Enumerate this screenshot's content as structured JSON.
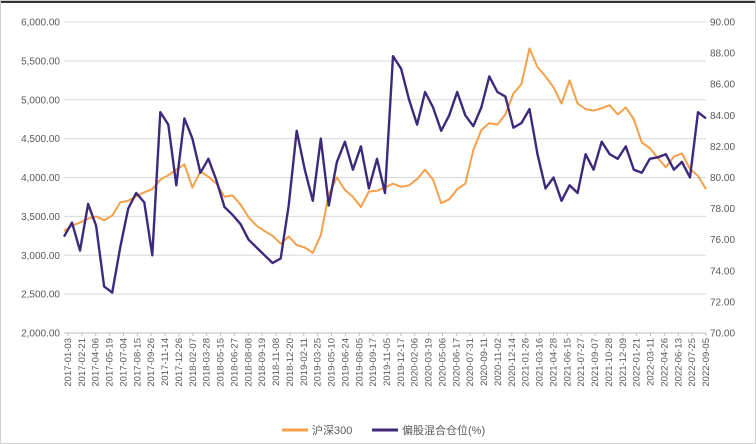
{
  "chart_data": {
    "type": "line",
    "title": "",
    "colors": {
      "hs300": "#F5A04A",
      "position": "#3E2A7D",
      "grid": "#D9D9D9",
      "axis": "#BFBFBF",
      "text": "#595959"
    },
    "left_axis": {
      "ylim": [
        2000,
        6000
      ],
      "ticks": [
        "6,000.00",
        "5,500.00",
        "5,000.00",
        "4,500.00",
        "4,000.00",
        "3,500.00",
        "3,000.00",
        "2,500.00",
        "2,000.00"
      ],
      "tick_values": [
        6000,
        5500,
        5000,
        4500,
        4000,
        3500,
        3000,
        2500,
        2000
      ]
    },
    "right_axis": {
      "ylim": [
        70,
        90
      ],
      "ticks": [
        "90.00",
        "88.00",
        "86.00",
        "84.00",
        "82.00",
        "80.00",
        "78.00",
        "76.00",
        "74.00",
        "72.00",
        "70.00"
      ],
      "tick_values": [
        90,
        88,
        86,
        84,
        82,
        80,
        78,
        76,
        74,
        72,
        70
      ]
    },
    "x_labels": [
      "2017-01-03",
      "2017-02-21",
      "2017-04-06",
      "2017-05-19",
      "2017-07-04",
      "2017-08-15",
      "2017-09-26",
      "2017-11-14",
      "2017-12-26",
      "2018-02-07",
      "2018-03-28",
      "2018-05-15",
      "2018-06-27",
      "2018-08-08",
      "2018-09-19",
      "2018-11-08",
      "2018-12-20",
      "2019-02-11",
      "2019-03-25",
      "2019-05-10",
      "2019-06-24",
      "2019-08-05",
      "2019-09-17",
      "2019-11-05",
      "2019-12-17",
      "2020-02-06",
      "2020-03-19",
      "2020-05-06",
      "2020-06-17",
      "2020-07-31",
      "2020-09-11",
      "2020-11-02",
      "2020-12-14",
      "2021-01-26",
      "2021-03-16",
      "2021-04-28",
      "2021-06-15",
      "2021-07-27",
      "2021-09-07",
      "2021-10-28",
      "2021-12-09",
      "2022-01-21",
      "2022-03-11",
      "2022-04-26",
      "2022-06-13",
      "2022-07-25",
      "2022-09-05"
    ],
    "series": [
      {
        "name": "沪深300",
        "axis": "left",
        "color": "#F5A04A",
        "values": [
          3310,
          3380,
          3420,
          3470,
          3500,
          3450,
          3510,
          3680,
          3700,
          3760,
          3810,
          3850,
          3970,
          4030,
          4100,
          4170,
          3870,
          4080,
          4010,
          3920,
          3750,
          3770,
          3650,
          3490,
          3380,
          3310,
          3250,
          3150,
          3240,
          3130,
          3100,
          3030,
          3260,
          3780,
          4000,
          3840,
          3750,
          3620,
          3820,
          3830,
          3870,
          3920,
          3880,
          3900,
          3980,
          4100,
          3970,
          3670,
          3720,
          3850,
          3920,
          4350,
          4610,
          4700,
          4680,
          4810,
          5080,
          5200,
          5660,
          5420,
          5300,
          5160,
          4950,
          5250,
          4950,
          4880,
          4860,
          4890,
          4930,
          4810,
          4900,
          4750,
          4450,
          4380,
          4250,
          4130,
          4270,
          4310,
          4110,
          4020,
          3850
        ]
      },
      {
        "name": "偏股混合仓位(%)",
        "axis": "right",
        "color": "#3E2A7D",
        "values": [
          76.2,
          77.1,
          75.3,
          78.3,
          76.9,
          73.0,
          72.6,
          75.5,
          78.0,
          79.0,
          78.4,
          75.0,
          84.2,
          83.4,
          79.5,
          83.8,
          82.5,
          80.3,
          81.2,
          79.8,
          78.1,
          77.6,
          77.0,
          76.0,
          75.5,
          75.0,
          74.5,
          74.8,
          78.2,
          83.0,
          80.5,
          78.5,
          82.5,
          78.2,
          81.0,
          82.3,
          80.5,
          82.0,
          79.3,
          81.2,
          79.0,
          87.8,
          87.0,
          85.0,
          83.4,
          85.5,
          84.5,
          83.0,
          84.0,
          85.5,
          84.0,
          83.3,
          84.5,
          86.5,
          85.5,
          85.2,
          83.2,
          83.5,
          84.4,
          81.5,
          79.3,
          80.0,
          78.5,
          79.5,
          79.0,
          81.5,
          80.5,
          82.3,
          81.5,
          81.2,
          82.0,
          80.5,
          80.3,
          81.2,
          81.3,
          81.5,
          80.5,
          81.0,
          80.0,
          84.2,
          83.8
        ]
      }
    ],
    "legend": {
      "position": "bottom-center",
      "entries": [
        "沪深300",
        "偏股混合仓位(%)"
      ]
    }
  }
}
